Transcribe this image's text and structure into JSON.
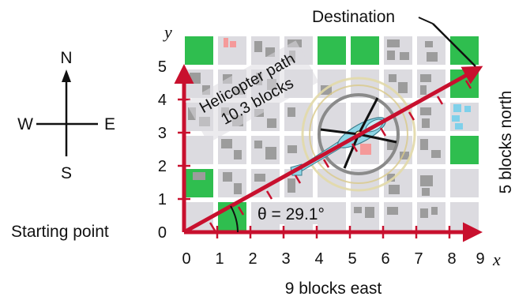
{
  "compass": {
    "north": "N",
    "south": "S",
    "east": "E",
    "west": "W"
  },
  "labels": {
    "destination": "Destination",
    "helicopter_path_line1": "Helicopter path",
    "helicopter_path_line2": "10.3 blocks",
    "angle": "θ = 29.1°",
    "starting_point": "Starting point",
    "east_leg": "9 blocks east",
    "north_leg": "5 blocks north",
    "x_axis": "x",
    "y_axis": "y"
  },
  "axes": {
    "x_ticks": [
      "0",
      "1",
      "2",
      "3",
      "4",
      "5",
      "6",
      "7",
      "8",
      "9"
    ],
    "y_ticks": [
      "0",
      "1",
      "2",
      "3",
      "4",
      "5"
    ]
  },
  "colors": {
    "arrow_red": "#c8102e",
    "block_gray": "#dcdbe0",
    "street_white": "#ffffff",
    "park_green": "#2fbe4f",
    "building_gray": "#9c9c9c",
    "roof_pink": "#f59a9a",
    "roof_blue": "#7fd0ea",
    "rotor_gold": "#d9c98a",
    "fuselage_cyan": "#8fd6e6"
  },
  "icons": {
    "compass": "compass-rose-icon",
    "helicopter": "helicopter-icon"
  }
}
